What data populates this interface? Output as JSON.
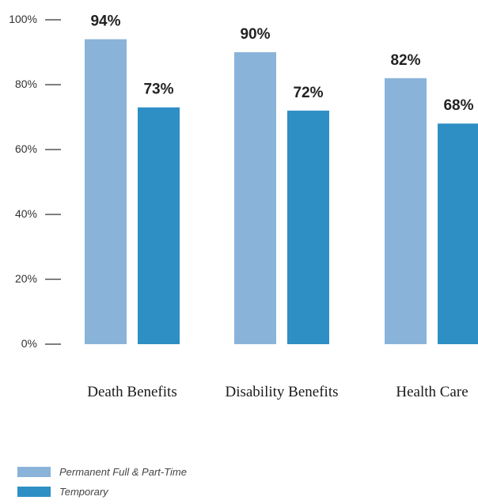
{
  "chart_data": {
    "type": "bar",
    "categories": [
      "Death Benefits",
      "Disability Benefits",
      "Health Care"
    ],
    "series": [
      {
        "name": "Permanent Full & Part-Time",
        "values": [
          94,
          90,
          82
        ],
        "color": "#8ab3d9"
      },
      {
        "name": "Temporary",
        "values": [
          73,
          72,
          68
        ],
        "color": "#2e8fc4"
      }
    ],
    "value_labels": [
      [
        "94%",
        "90%",
        "82%"
      ],
      [
        "73%",
        "72%",
        "68%"
      ]
    ],
    "y_ticks": [
      {
        "value": 0,
        "label": "0%"
      },
      {
        "value": 20,
        "label": "20%"
      },
      {
        "value": 40,
        "label": "40%"
      },
      {
        "value": 60,
        "label": "60%"
      },
      {
        "value": 80,
        "label": "80%"
      },
      {
        "value": 100,
        "label": "100%"
      }
    ],
    "ylim": [
      0,
      100
    ],
    "title": "",
    "xlabel": "",
    "ylabel": "",
    "grid": false,
    "legend_position": "bottom-left",
    "tick_color": "#333333"
  }
}
